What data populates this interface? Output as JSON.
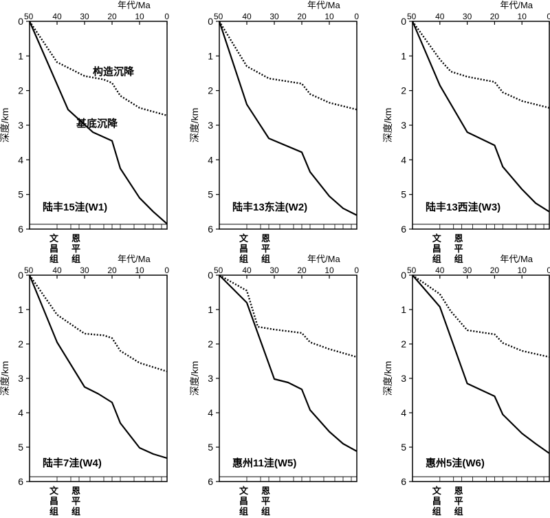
{
  "figure": {
    "x_axis_label": "年代/Ma",
    "y_axis_label": "深度/km",
    "x_ticks": [
      50,
      40,
      30,
      20,
      10,
      0
    ],
    "y_ticks": [
      0,
      1,
      2,
      3,
      4,
      5,
      6
    ],
    "formations": [
      {
        "label": "文\n昌\n组",
        "age": 40
      },
      {
        "label": "恩\n平\n组",
        "age": 32
      }
    ]
  },
  "chart_data": [
    {
      "type": "line",
      "title": "陆丰15洼(W1)",
      "xlabel": "年代/Ma",
      "ylabel": "深度/km",
      "xlim": [
        50,
        0
      ],
      "ylim": [
        0,
        6
      ],
      "annotations": [
        {
          "text": "构造沉降",
          "x": 27,
          "y": 1.55
        },
        {
          "text": "基底沉降",
          "x": 33,
          "y": 3.05
        }
      ],
      "series": [
        {
          "name": "构造沉降",
          "style": "dotted",
          "x": [
            50,
            40,
            30,
            23,
            20,
            17,
            10,
            0
          ],
          "y": [
            0,
            1.18,
            1.58,
            1.68,
            1.78,
            2.15,
            2.5,
            2.72
          ]
        },
        {
          "name": "基底沉降",
          "style": "solid",
          "x": [
            50,
            36,
            27,
            20,
            17,
            10,
            5,
            0
          ],
          "y": [
            0,
            2.55,
            3.2,
            3.45,
            4.25,
            5.1,
            5.5,
            5.85
          ]
        }
      ]
    },
    {
      "type": "line",
      "title": "陆丰13东洼(W2)",
      "xlabel": "年代/Ma",
      "ylabel": "深度/km",
      "xlim": [
        50,
        0
      ],
      "ylim": [
        0,
        6
      ],
      "series": [
        {
          "name": "构造沉降",
          "style": "dotted",
          "x": [
            50,
            40,
            32,
            20,
            17,
            10,
            0
          ],
          "y": [
            0,
            1.3,
            1.65,
            1.8,
            2.1,
            2.35,
            2.55
          ]
        },
        {
          "name": "基底沉降",
          "style": "solid",
          "x": [
            50,
            40,
            32,
            20,
            17,
            10,
            5,
            0
          ],
          "y": [
            0,
            2.4,
            3.38,
            3.78,
            4.35,
            5.05,
            5.4,
            5.6
          ]
        }
      ]
    },
    {
      "type": "line",
      "title": "陆丰13西洼(W3)",
      "xlabel": "年代/Ma",
      "ylabel": "深度/km",
      "xlim": [
        50,
        0
      ],
      "ylim": [
        0,
        6
      ],
      "series": [
        {
          "name": "构造沉降",
          "style": "dotted",
          "x": [
            50,
            40,
            36,
            30,
            20,
            17,
            10,
            0
          ],
          "y": [
            0,
            1.1,
            1.45,
            1.6,
            1.75,
            2.05,
            2.3,
            2.5
          ]
        },
        {
          "name": "基底沉降",
          "style": "solid",
          "x": [
            50,
            40,
            30,
            20,
            17,
            10,
            5,
            0
          ],
          "y": [
            0,
            1.85,
            3.2,
            3.58,
            4.2,
            4.85,
            5.25,
            5.5
          ]
        }
      ]
    },
    {
      "type": "line",
      "title": "陆丰7洼(W4)",
      "xlabel": "年代/Ma",
      "ylabel": "深度/km",
      "xlim": [
        50,
        0
      ],
      "ylim": [
        0,
        6
      ],
      "series": [
        {
          "name": "构造沉降",
          "style": "dotted",
          "x": [
            50,
            40,
            30,
            23,
            20,
            17,
            10,
            0
          ],
          "y": [
            0,
            1.15,
            1.7,
            1.75,
            1.83,
            2.2,
            2.55,
            2.8
          ]
        },
        {
          "name": "基底沉降",
          "style": "solid",
          "x": [
            50,
            40,
            30,
            25,
            20,
            17,
            10,
            5,
            0
          ],
          "y": [
            0,
            1.95,
            3.25,
            3.45,
            3.7,
            4.3,
            5.02,
            5.2,
            5.32
          ]
        }
      ]
    },
    {
      "type": "line",
      "title": "惠州11洼(W5)",
      "xlabel": "年代/Ma",
      "ylabel": "深度/km",
      "xlim": [
        50,
        0
      ],
      "ylim": [
        0,
        6
      ],
      "series": [
        {
          "name": "构造沉降",
          "style": "dotted",
          "x": [
            50,
            40,
            36,
            30,
            20,
            17,
            10,
            0
          ],
          "y": [
            0,
            0.45,
            1.5,
            1.58,
            1.68,
            1.95,
            2.15,
            2.38
          ]
        },
        {
          "name": "基底沉降",
          "style": "solid",
          "x": [
            50,
            40,
            30,
            25,
            20,
            17,
            10,
            5,
            0
          ],
          "y": [
            0,
            0.8,
            3.02,
            3.12,
            3.32,
            3.92,
            4.55,
            4.9,
            5.12
          ]
        }
      ]
    },
    {
      "type": "line",
      "title": "惠州5洼(W6)",
      "xlabel": "年代/Ma",
      "ylabel": "深度/km",
      "xlim": [
        50,
        0
      ],
      "ylim": [
        0,
        6
      ],
      "series": [
        {
          "name": "构造沉降",
          "style": "dotted",
          "x": [
            50,
            40,
            36,
            30,
            20,
            17,
            10,
            0
          ],
          "y": [
            0,
            0.55,
            1.05,
            1.6,
            1.72,
            1.97,
            2.2,
            2.38
          ]
        },
        {
          "name": "基底沉降",
          "style": "solid",
          "x": [
            50,
            40,
            30,
            20,
            17,
            10,
            5,
            0
          ],
          "y": [
            0,
            0.92,
            3.15,
            3.52,
            4.05,
            4.6,
            4.9,
            5.18
          ]
        }
      ]
    }
  ]
}
